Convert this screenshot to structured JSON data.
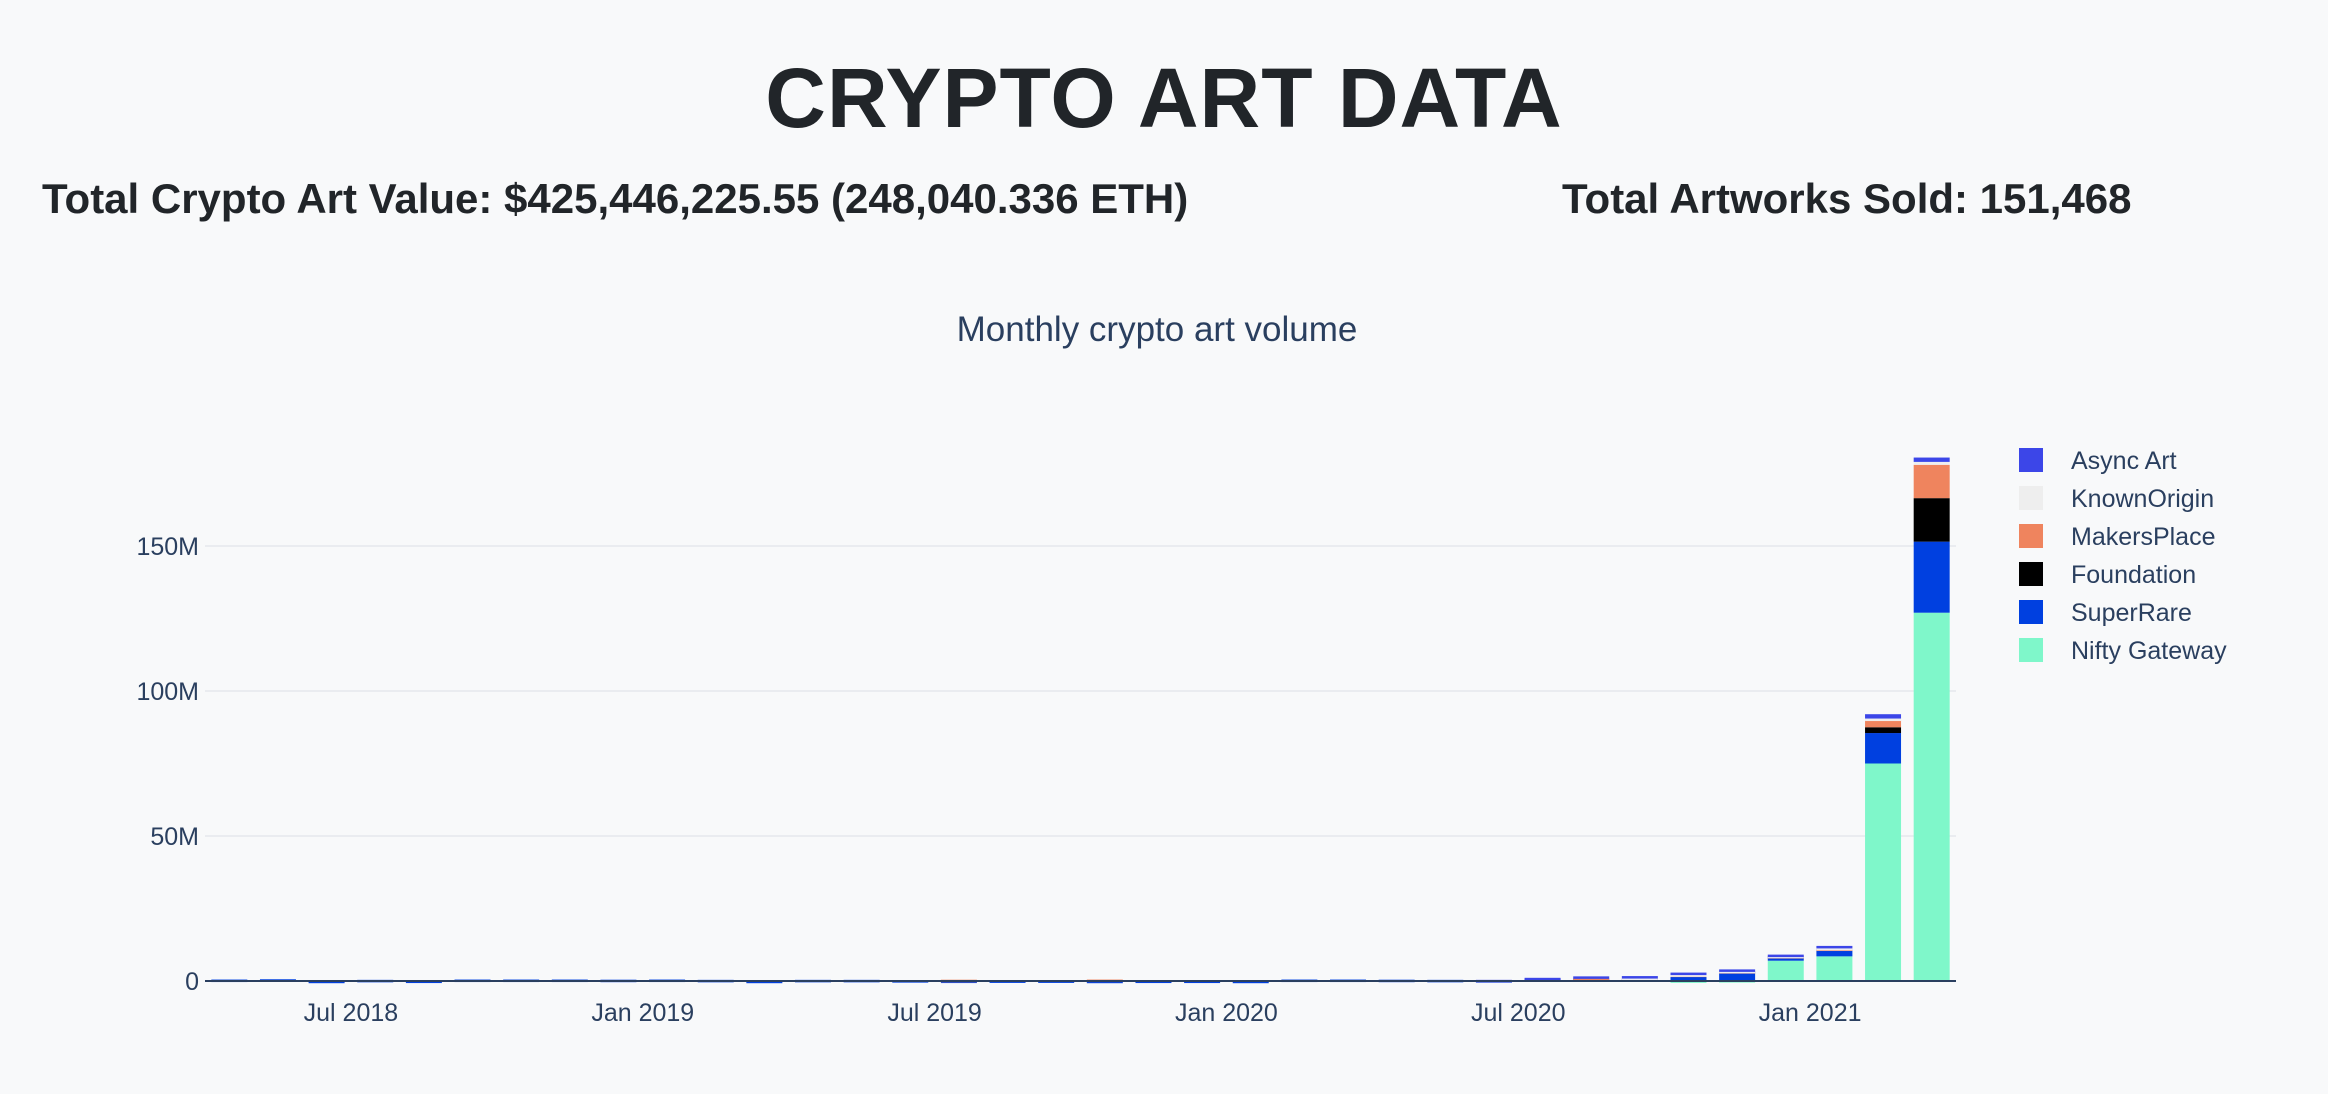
{
  "header": {
    "title": "CRYPTO ART DATA",
    "total_value_text": "Total Crypto Art Value: $425,446,225.55 (248,040.336 ETH)",
    "total_sold_text": "Total Artworks Sold: 151,468"
  },
  "chart_data": {
    "type": "bar",
    "barmode": "stack",
    "title": "Monthly crypto art volume",
    "xlabel": "",
    "ylabel": "",
    "ylim": [
      0,
      190000000
    ],
    "grid": true,
    "legend_position": "top-right",
    "y_ticks": [
      {
        "value": 0,
        "label": "0"
      },
      {
        "value": 50000000,
        "label": "50M"
      },
      {
        "value": 100000000,
        "label": "100M"
      },
      {
        "value": 150000000,
        "label": "150M"
      }
    ],
    "x_ticks": [
      {
        "value": "2018-07",
        "label": "Jul 2018"
      },
      {
        "value": "2019-01",
        "label": "Jan 2019"
      },
      {
        "value": "2019-07",
        "label": "Jul 2019"
      },
      {
        "value": "2020-01",
        "label": "Jan 2020"
      },
      {
        "value": "2020-07",
        "label": "Jul 2020"
      },
      {
        "value": "2021-01",
        "label": "Jan 2021"
      }
    ],
    "categories": [
      "2018-04",
      "2018-05",
      "2018-06",
      "2018-07",
      "2018-08",
      "2018-09",
      "2018-10",
      "2018-11",
      "2018-12",
      "2019-01",
      "2019-02",
      "2019-03",
      "2019-04",
      "2019-05",
      "2019-06",
      "2019-07",
      "2019-08",
      "2019-09",
      "2019-10",
      "2019-11",
      "2019-12",
      "2020-01",
      "2020-02",
      "2020-03",
      "2020-04",
      "2020-05",
      "2020-06",
      "2020-07",
      "2020-08",
      "2020-09",
      "2020-10",
      "2020-11",
      "2020-12",
      "2021-01",
      "2021-02",
      "2021-03"
    ],
    "series": [
      {
        "name": "Nifty Gateway",
        "color": "#7ff7ca",
        "values": [
          0,
          0,
          0,
          0,
          0,
          0,
          0,
          0,
          0,
          0,
          0,
          0,
          0,
          0,
          0,
          0,
          0,
          0,
          0,
          0,
          0,
          0,
          0,
          0,
          0,
          0,
          0,
          0,
          0,
          0,
          200000,
          300000,
          7000000,
          8500000,
          75000000,
          127000000
        ]
      },
      {
        "name": "SuperRare",
        "color": "#0040e0",
        "values": [
          500000,
          600000,
          100000,
          400000,
          150000,
          500000,
          500000,
          500000,
          450000,
          500000,
          400000,
          100000,
          400000,
          400000,
          300000,
          150000,
          200000,
          200000,
          100000,
          150000,
          150000,
          100000,
          500000,
          500000,
          450000,
          400000,
          300000,
          800000,
          800000,
          700000,
          1800000,
          3000000,
          1500000,
          2500000,
          10500000,
          24500000
        ]
      },
      {
        "name": "Foundation",
        "color": "#000000",
        "values": [
          0,
          0,
          0,
          0,
          0,
          0,
          0,
          0,
          0,
          0,
          0,
          0,
          0,
          0,
          0,
          0,
          0,
          0,
          0,
          0,
          0,
          0,
          0,
          0,
          0,
          0,
          0,
          0,
          0,
          0,
          0,
          0,
          0,
          0,
          2000000,
          15000000
        ]
      },
      {
        "name": "MakersPlace",
        "color": "#ef845e",
        "values": [
          0,
          0,
          0,
          0,
          0,
          0,
          0,
          0,
          0,
          0,
          0,
          0,
          0,
          0,
          0,
          300000,
          0,
          0,
          400000,
          0,
          0,
          0,
          0,
          0,
          0,
          0,
          0,
          0,
          100000,
          200000,
          200000,
          100000,
          100000,
          200000,
          2500000,
          11500000
        ]
      },
      {
        "name": "KnownOrigin",
        "color": "#eeeeee",
        "values": [
          0,
          0,
          0,
          0,
          0,
          0,
          0,
          0,
          0,
          0,
          0,
          0,
          0,
          0,
          0,
          0,
          0,
          0,
          0,
          0,
          0,
          0,
          0,
          0,
          0,
          0,
          0,
          0,
          0,
          100000,
          100000,
          100000,
          100000,
          200000,
          500000,
          1000000
        ]
      },
      {
        "name": "Async Art",
        "color": "#3c46e8",
        "values": [
          0,
          0,
          0,
          0,
          0,
          0,
          0,
          0,
          0,
          0,
          0,
          0,
          0,
          0,
          0,
          0,
          0,
          0,
          0,
          0,
          0,
          0,
          0,
          0,
          0,
          0,
          100000,
          300000,
          700000,
          700000,
          600000,
          500000,
          400000,
          700000,
          1500000,
          1500000
        ]
      }
    ],
    "legend_order": [
      "Async Art",
      "KnownOrigin",
      "MakersPlace",
      "Foundation",
      "SuperRare",
      "Nifty Gateway"
    ]
  }
}
